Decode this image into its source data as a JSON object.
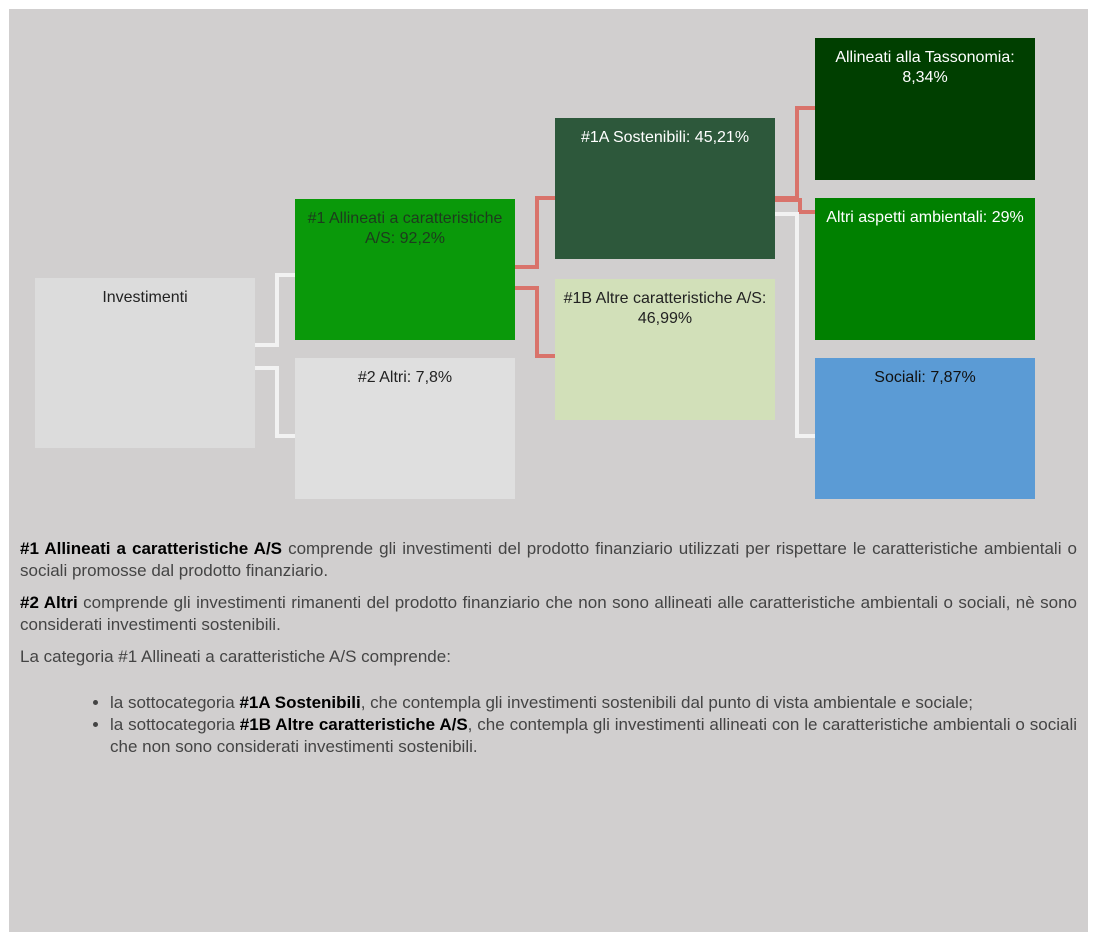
{
  "nodes": [
    {
      "label": "Investimenti"
    },
    {
      "label": "#1 Allineati a caratteristiche A/S: 92,2%"
    },
    {
      "label": "#2 Altri: 7,8%"
    },
    {
      "label": "#1A Sostenibili: 45,21%"
    },
    {
      "label": "#1B Altre caratteristiche A/S: 46,99%"
    },
    {
      "label": "Allineati alla Tassonomia: 8,34%"
    },
    {
      "label": "Altri aspetti ambientali: 29%"
    },
    {
      "label": "Sociali: 7,87%"
    }
  ],
  "paragraphs": [
    {
      "bold": "#1 Allineati a caratteristiche A/S",
      "text": " comprende gli investimenti del prodotto finanziario utilizzati per rispettare le caratteristiche ambientali o sociali promosse dal prodotto finanziario."
    },
    {
      "bold": "#2 Altri",
      "text": " comprende gli investimenti rimanenti del prodotto finanziario che non sono allineati alle caratteristiche ambientali o sociali, nè sono considerati investimenti sostenibili."
    },
    {
      "text": "La categoria #1 Allineati a caratteristiche A/S comprende:"
    }
  ],
  "list": [
    {
      "prefix": "la sottocategoria ",
      "bold": "#1A Sostenibili",
      "text": ", che contempla gli investimenti sostenibili dal punto di vista ambientale e sociale;"
    },
    {
      "prefix": "la sottocategoria ",
      "bold": "#1B Altre caratteristiche A/S",
      "text": ", che contempla gli investimenti allineati con le caratteristiche ambientali o sociali che non sono considerati investimenti sostenibili."
    }
  ]
}
